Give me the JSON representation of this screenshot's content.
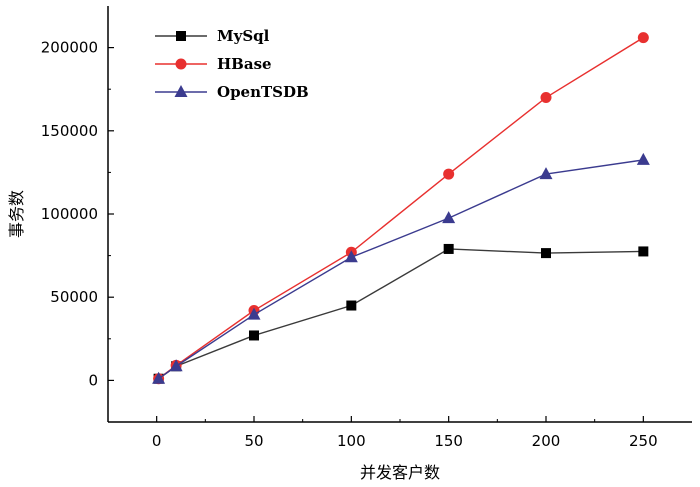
{
  "chart_data": {
    "type": "line",
    "xlabel": "并发客户数",
    "ylabel": "事务数",
    "xlim": [
      -25,
      275
    ],
    "ylim": [
      -25000,
      225000
    ],
    "x_ticks": [
      0,
      50,
      100,
      150,
      200,
      250
    ],
    "y_ticks": [
      0,
      50000,
      100000,
      150000,
      200000
    ],
    "x": [
      1,
      10,
      50,
      100,
      150,
      200,
      250
    ],
    "grid": false,
    "legend_position": "top-left",
    "series": [
      {
        "name": "MySql",
        "color": "#3a3a3a",
        "marker": "square",
        "values": [
          1000,
          8500,
          27000,
          45000,
          79000,
          76500,
          77500
        ]
      },
      {
        "name": "HBase",
        "color": "#e8302f",
        "marker": "circle",
        "values": [
          1000,
          9000,
          42000,
          77000,
          124000,
          170000,
          206000
        ]
      },
      {
        "name": "OpenTSDB",
        "color": "#3b3b8f",
        "marker": "triangle",
        "values": [
          1000,
          8500,
          39500,
          74000,
          97500,
          124000,
          132500
        ]
      }
    ]
  }
}
